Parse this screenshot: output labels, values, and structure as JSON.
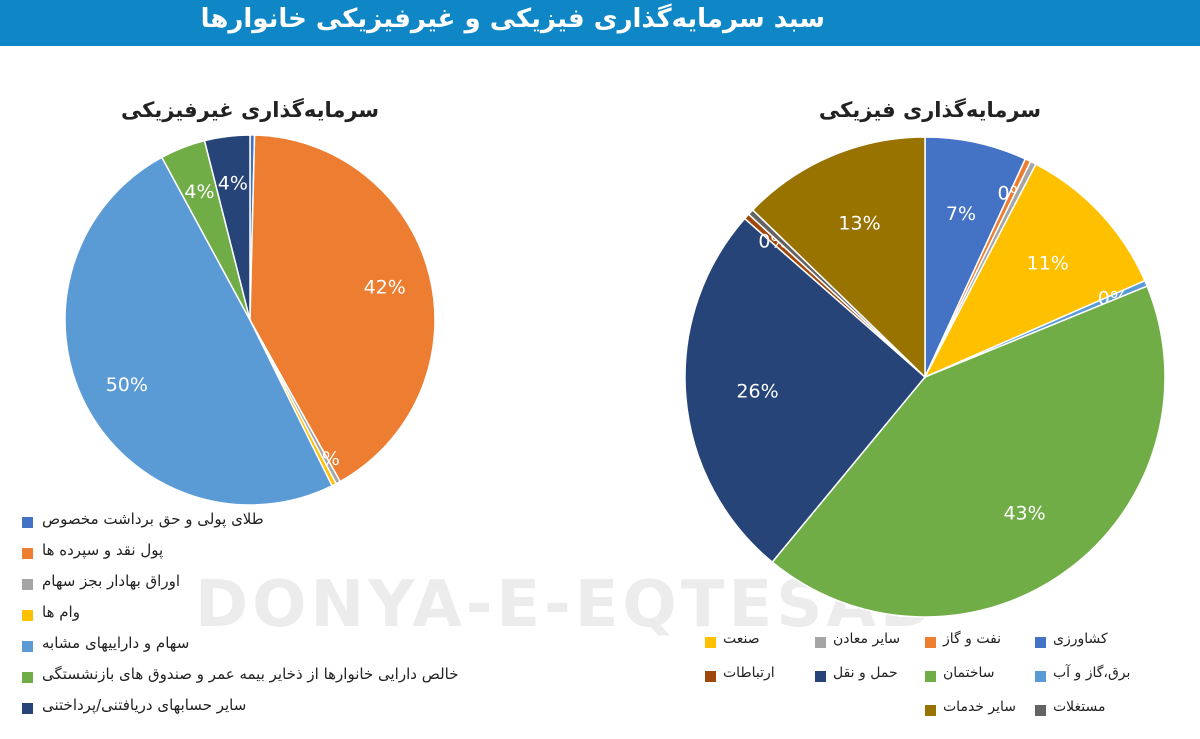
{
  "header": {
    "title": "سبد سرمایه‌گذاری فیزیکی و غیرفیزیکی خانوارها"
  },
  "watermark": "DONYA-E-EQTESAD",
  "colors": {
    "header": "#0f86c6"
  },
  "chart_data": [
    {
      "type": "pie",
      "title": "سرمایه‌گذاری غیرفیزیکی",
      "legend_position": "bottom-left",
      "slices": [
        {
          "label": "طلای پولی و حق برداشت مخصوص",
          "value": 0,
          "data_label": "",
          "color": "#4472c4"
        },
        {
          "label": "پول نقد و سپرده ها",
          "value": 42,
          "data_label": "42%",
          "color": "#ed7d31"
        },
        {
          "label": "اوراق بهادار بجز سهام",
          "value": 0,
          "data_label": "0%",
          "color": "#a5a5a5"
        },
        {
          "label": "وام ها",
          "value": 0,
          "data_label": "",
          "color": "#ffc000"
        },
        {
          "label": "سهام و داراییهای مشابه",
          "value": 50,
          "data_label": "50%",
          "color": "#5b9bd5"
        },
        {
          "label": "خالص دارایی خانوارها از ذخایر بیمه عمر و صندوق های بازنشستگی",
          "value": 4,
          "data_label": "4%",
          "color": "#70ad47"
        },
        {
          "label": "سایر حسابهای دریافتنی/پرداختنی",
          "value": 4,
          "data_label": "4%",
          "color": "#264478"
        }
      ]
    },
    {
      "type": "pie",
      "title": "سرمایه‌گذاری فیزیکی",
      "legend_position": "bottom-right",
      "slices": [
        {
          "label": "کشاورزی",
          "value": 7,
          "data_label": "7%",
          "color": "#4472c4"
        },
        {
          "label": "نفت و گاز",
          "value": 0,
          "data_label": "0%",
          "color": "#ed7d31"
        },
        {
          "label": "سایر معادن",
          "value": 0,
          "data_label": "",
          "color": "#a5a5a5"
        },
        {
          "label": "صنعت",
          "value": 11,
          "data_label": "11%",
          "color": "#ffc000"
        },
        {
          "label": "برق،گاز و آب",
          "value": 0,
          "data_label": "0%",
          "color": "#5b9bd5"
        },
        {
          "label": "ساختمان",
          "value": 43,
          "data_label": "43%",
          "color": "#70ad47"
        },
        {
          "label": "حمل و نقل",
          "value": 26,
          "data_label": "26%",
          "color": "#264478"
        },
        {
          "label": "ارتباطات",
          "value": 0,
          "data_label": "0%",
          "color": "#9e480e"
        },
        {
          "label": "مستغلات",
          "value": 0,
          "data_label": "",
          "color": "#636363"
        },
        {
          "label": "سایر خدمات",
          "value": 13,
          "data_label": "13%",
          "color": "#997300"
        }
      ]
    }
  ]
}
